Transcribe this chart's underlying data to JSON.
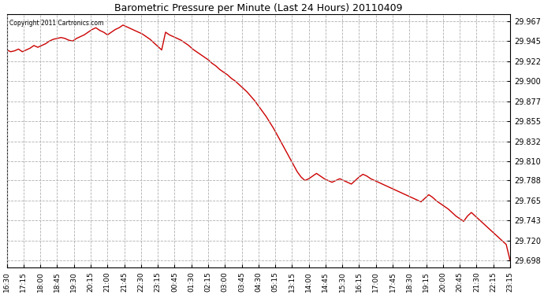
{
  "title": "Barometric Pressure per Minute (Last 24 Hours) 20110409",
  "copyright": "Copyright 2011 Cartronics.com",
  "line_color": "#cc0000",
  "bg_color": "#ffffff",
  "plot_bg_color": "#ffffff",
  "grid_color": "#b0b0b0",
  "yticks": [
    29.967,
    29.945,
    29.922,
    29.9,
    29.877,
    29.855,
    29.832,
    29.81,
    29.788,
    29.765,
    29.743,
    29.72,
    29.698
  ],
  "ylim": [
    29.69,
    29.975
  ],
  "xtick_labels": [
    "16:30",
    "17:15",
    "18:00",
    "18:45",
    "19:30",
    "20:15",
    "21:00",
    "21:45",
    "22:30",
    "23:15",
    "00:45",
    "01:30",
    "02:15",
    "03:00",
    "03:45",
    "04:30",
    "05:15",
    "13:15",
    "14:00",
    "14:45",
    "15:30",
    "16:15",
    "17:00",
    "17:45",
    "18:30",
    "19:15",
    "20:00",
    "20:45",
    "21:30",
    "22:15",
    "23:15"
  ],
  "pressure_data": [
    29.935,
    29.933,
    29.934,
    29.936,
    29.933,
    29.935,
    29.937,
    29.94,
    29.938,
    29.94,
    29.942,
    29.945,
    29.947,
    29.948,
    29.949,
    29.948,
    29.946,
    29.945,
    29.948,
    29.95,
    29.952,
    29.955,
    29.958,
    29.96,
    29.957,
    29.955,
    29.952,
    29.955,
    29.958,
    29.96,
    29.963,
    29.961,
    29.959,
    29.957,
    29.955,
    29.953,
    29.95,
    29.947,
    29.943,
    29.939,
    29.935,
    29.955,
    29.952,
    29.95,
    29.948,
    29.946,
    29.943,
    29.94,
    29.936,
    29.933,
    29.93,
    29.927,
    29.924,
    29.92,
    29.917,
    29.913,
    29.91,
    29.907,
    29.903,
    29.9,
    29.896,
    29.892,
    29.888,
    29.883,
    29.878,
    29.872,
    29.866,
    29.86,
    29.853,
    29.846,
    29.838,
    29.83,
    29.822,
    29.814,
    29.806,
    29.798,
    29.792,
    29.788,
    29.79,
    29.793,
    29.796,
    29.793,
    29.79,
    29.788,
    29.786,
    29.788,
    29.79,
    29.788,
    29.786,
    29.784,
    29.788,
    29.792,
    29.795,
    29.793,
    29.79,
    29.788,
    29.786,
    29.784,
    29.782,
    29.78,
    29.778,
    29.776,
    29.774,
    29.772,
    29.77,
    29.768,
    29.766,
    29.764,
    29.768,
    29.772,
    29.769,
    29.765,
    29.762,
    29.759,
    29.756,
    29.752,
    29.748,
    29.745,
    29.742,
    29.748,
    29.752,
    29.748,
    29.744,
    29.74,
    29.736,
    29.732,
    29.728,
    29.724,
    29.72,
    29.716,
    29.698
  ]
}
